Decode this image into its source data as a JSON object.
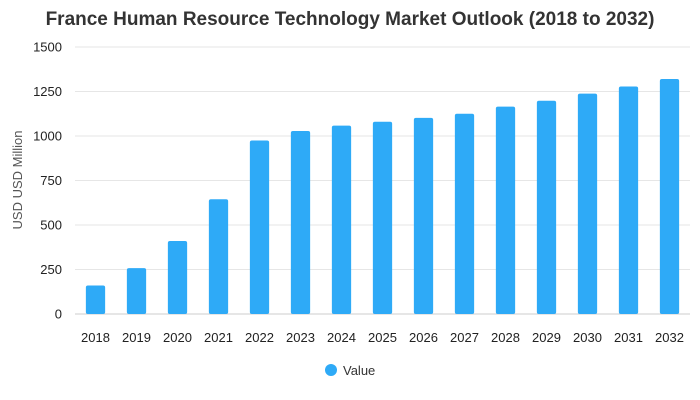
{
  "chart_data": {
    "type": "bar",
    "title": "France Human Resource Technology Market Outlook (2018 to 2032)",
    "xlabel": "",
    "ylabel": "USD USD Million",
    "ylim": [
      0,
      1500
    ],
    "yticks": [
      0,
      250,
      500,
      750,
      1000,
      1250,
      1500
    ],
    "categories": [
      "2018",
      "2019",
      "2020",
      "2021",
      "2022",
      "2023",
      "2024",
      "2025",
      "2026",
      "2027",
      "2028",
      "2029",
      "2030",
      "2031",
      "2032"
    ],
    "series": [
      {
        "name": "Value",
        "color": "#2eaaf7",
        "values": [
          160,
          258,
          410,
          645,
          975,
          1028,
          1058,
          1080,
          1102,
          1125,
          1165,
          1198,
          1238,
          1278,
          1320
        ]
      }
    ],
    "grid": true,
    "legend_position": "bottom-center"
  }
}
